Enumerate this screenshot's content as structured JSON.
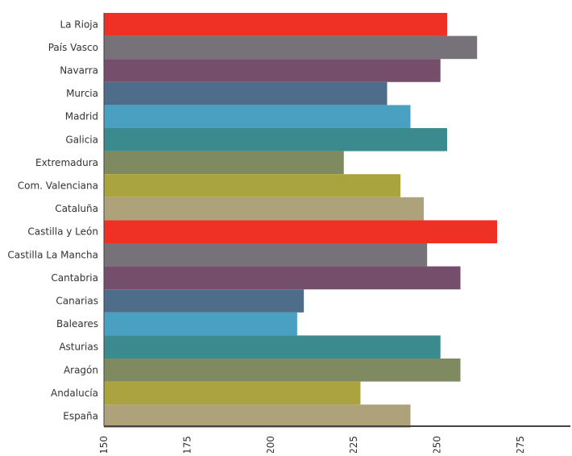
{
  "chart_data": {
    "type": "bar",
    "orientation": "horizontal",
    "title": "",
    "xlabel": "",
    "ylabel": "",
    "categories": [
      "La Rioja",
      "País Vasco",
      "Navarra",
      "Murcia",
      "Madrid",
      "Galicia",
      "Extremadura",
      "Com. Valenciana",
      "Cataluña",
      "Castilla y León",
      "Castilla La Mancha",
      "Cantabria",
      "Canarias",
      "Baleares",
      "Asturias",
      "Aragón",
      "Andalucía",
      "España"
    ],
    "values": [
      253,
      262,
      251,
      235,
      242,
      253,
      222,
      239,
      246,
      268,
      247,
      257,
      210,
      208,
      251,
      257,
      227,
      242
    ],
    "xlim": [
      150,
      290
    ],
    "xticks": [
      "150",
      "175",
      "200",
      "225",
      "250",
      "275"
    ],
    "tick_values": [
      150,
      175,
      200,
      225,
      250,
      275
    ],
    "grid": false,
    "legend": "none",
    "colors": [
      "#EE3124",
      "#77717A",
      "#744E6B",
      "#4E6D8B",
      "#4AA0C0",
      "#3B8A8D",
      "#808A61",
      "#ABA33F",
      "#AEA27B"
    ]
  }
}
